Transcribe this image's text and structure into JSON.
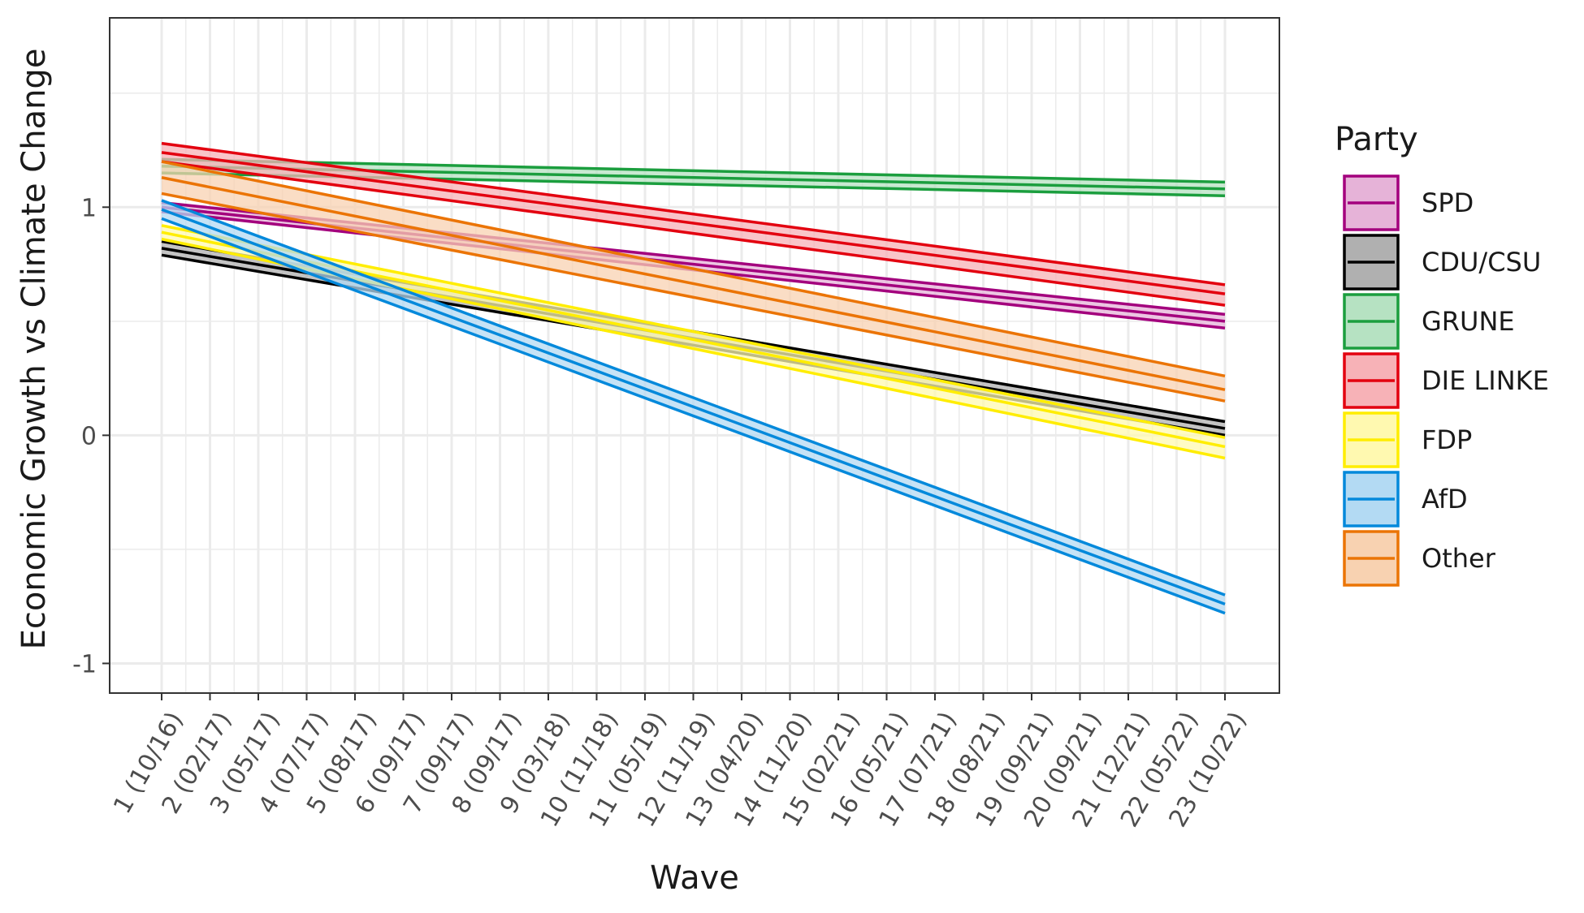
{
  "chart_data": {
    "type": "line",
    "xlabel": "Wave",
    "ylabel": "Economic Growth vs Climate Change",
    "categories": [
      "1 (10/16)",
      "2 (02/17)",
      "3 (05/17)",
      "4 (07/17)",
      "5 (08/17)",
      "6 (09/17)",
      "7 (09/17)",
      "8 (09/17)",
      "9 (03/18)",
      "10 (11/18)",
      "11 (05/19)",
      "12 (11/19)",
      "13 (04/20)",
      "14 (11/20)",
      "15 (02/21)",
      "16 (05/21)",
      "17 (07/21)",
      "18 (08/21)",
      "19 (09/21)",
      "20 (09/21)",
      "21 (12/21)",
      "22 (05/22)",
      "23 (10/22)"
    ],
    "ylim": [
      -1.13,
      1.83
    ],
    "yticks": [
      -1,
      0,
      1
    ],
    "grid": true,
    "legend": {
      "title": "Party",
      "position": "right"
    },
    "series": [
      {
        "name": "SPD",
        "color": "#A3007D",
        "fill": "#E6B3D8",
        "start": 1.0,
        "end": 0.5,
        "lower_start": 0.98,
        "lower_end": 0.47,
        "upper_start": 1.02,
        "upper_end": 0.53
      },
      {
        "name": "CDU/CSU",
        "color": "#000000",
        "fill": "#B0B0B0",
        "start": 0.82,
        "end": 0.03,
        "lower_start": 0.79,
        "lower_end": 0.0,
        "upper_start": 0.85,
        "upper_end": 0.06
      },
      {
        "name": "GRUNE",
        "color": "#1B9E3E",
        "fill": "#B6E2C2",
        "start": 1.18,
        "end": 1.08,
        "lower_start": 1.15,
        "lower_end": 1.05,
        "upper_start": 1.21,
        "upper_end": 1.11
      },
      {
        "name": "DIE LINKE",
        "color": "#E3000F",
        "fill": "#F7B2B7",
        "start": 1.24,
        "end": 0.62,
        "lower_start": 1.2,
        "lower_end": 0.57,
        "upper_start": 1.28,
        "upper_end": 0.66
      },
      {
        "name": "FDP",
        "color": "#FFED00",
        "fill": "#FFF9B0",
        "start": 0.89,
        "end": -0.05,
        "lower_start": 0.86,
        "lower_end": -0.1,
        "upper_start": 0.92,
        "upper_end": -0.01
      },
      {
        "name": "AfD",
        "color": "#0489DB",
        "fill": "#B3DAF3",
        "start": 0.99,
        "end": -0.74,
        "lower_start": 0.95,
        "lower_end": -0.78,
        "upper_start": 1.03,
        "upper_end": -0.7
      },
      {
        "name": "Other",
        "color": "#EB7405",
        "fill": "#F8D2B1",
        "start": 1.13,
        "end": 0.2,
        "lower_start": 1.06,
        "lower_end": 0.15,
        "upper_start": 1.2,
        "upper_end": 0.26
      }
    ]
  }
}
